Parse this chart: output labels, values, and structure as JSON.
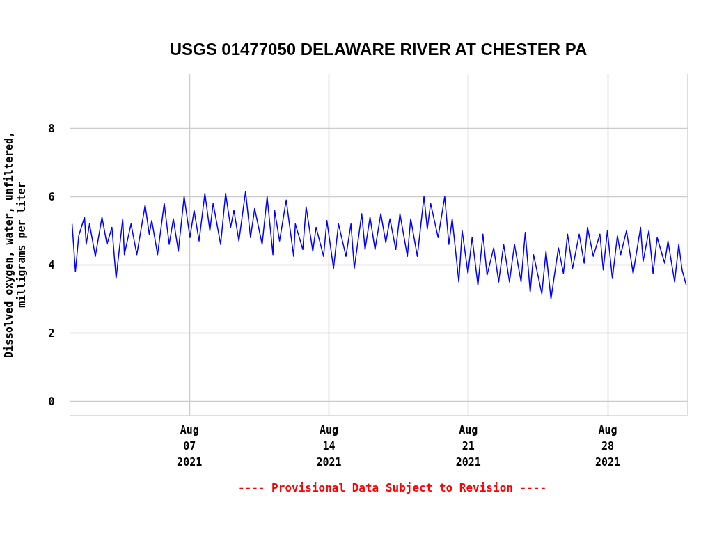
{
  "chart_data": {
    "type": "line",
    "title": "USGS 01477050 DELAWARE RIVER AT CHESTER PA",
    "ylabel": "Dissolved oxygen, water, unfiltered,\nmilligrams per liter",
    "annotations": [
      "---- Provisional Data Subject to Revision ----"
    ],
    "x": [
      "2021-08-01T03:00",
      "2021-08-01T07:00",
      "2021-08-01T11:00",
      "2021-08-01T18:00",
      "2021-08-01T20:00",
      "2021-08-02T00:00",
      "2021-08-02T07:00",
      "2021-08-02T15:00",
      "2021-08-02T21:00",
      "2021-08-03T03:00",
      "2021-08-03T08:00",
      "2021-08-03T16:00",
      "2021-08-03T18:00",
      "2021-08-04T02:00",
      "2021-08-04T09:00",
      "2021-08-04T19:00",
      "2021-08-05T00:00",
      "2021-08-05T03:00",
      "2021-08-05T10:00",
      "2021-08-05T18:00",
      "2021-08-06T00:00",
      "2021-08-06T05:00",
      "2021-08-06T11:00",
      "2021-08-06T18:00",
      "2021-08-07T01:00",
      "2021-08-07T06:00",
      "2021-08-07T12:00",
      "2021-08-07T19:00",
      "2021-08-08T01:00",
      "2021-08-08T05:00",
      "2021-08-08T14:00",
      "2021-08-08T20:00",
      "2021-08-09T02:00",
      "2021-08-09T06:00",
      "2021-08-09T12:00",
      "2021-08-09T20:00",
      "2021-08-10T02:00",
      "2021-08-10T07:00",
      "2021-08-10T16:00",
      "2021-08-10T22:00",
      "2021-08-11T05:00",
      "2021-08-11T07:00",
      "2021-08-11T13:00",
      "2021-08-11T21:00",
      "2021-08-12T06:00",
      "2021-08-12T08:00",
      "2021-08-12T17:00",
      "2021-08-12T21:00",
      "2021-08-13T05:00",
      "2021-08-13T09:00",
      "2021-08-13T18:00",
      "2021-08-13T22:00",
      "2021-08-14T06:00",
      "2021-08-14T12:00",
      "2021-08-14T21:00",
      "2021-08-15T03:00",
      "2021-08-15T07:00",
      "2021-08-15T16:00",
      "2021-08-15T20:00",
      "2021-08-16T02:00",
      "2021-08-16T08:00",
      "2021-08-16T15:00",
      "2021-08-16T21:00",
      "2021-08-17T02:00",
      "2021-08-17T09:00",
      "2021-08-17T14:00",
      "2021-08-17T23:00",
      "2021-08-18T03:00",
      "2021-08-18T11:00",
      "2021-08-18T19:00",
      "2021-08-18T23:00",
      "2021-08-19T03:00",
      "2021-08-19T12:00",
      "2021-08-19T20:00",
      "2021-08-20T01:00",
      "2021-08-20T05:00",
      "2021-08-20T13:00",
      "2021-08-20T17:00",
      "2021-08-21T00:00",
      "2021-08-21T05:00",
      "2021-08-21T12:00",
      "2021-08-21T18:00",
      "2021-08-21T23:00",
      "2021-08-22T07:00",
      "2021-08-22T13:00",
      "2021-08-22T19:00",
      "2021-08-23T02:00",
      "2021-08-23T08:00",
      "2021-08-23T16:00",
      "2021-08-23T21:00",
      "2021-08-24T03:00",
      "2021-08-24T07:00",
      "2021-08-24T17:00",
      "2021-08-24T22:00",
      "2021-08-25T04:00",
      "2021-08-25T13:00",
      "2021-08-25T19:00",
      "2021-08-26T00:00",
      "2021-08-26T06:00",
      "2021-08-26T14:00",
      "2021-08-26T20:00",
      "2021-08-27T00:00",
      "2021-08-27T07:00",
      "2021-08-27T15:00",
      "2021-08-27T19:00",
      "2021-08-28T00:00",
      "2021-08-28T06:00",
      "2021-08-28T12:00",
      "2021-08-28T16:00",
      "2021-08-28T23:00",
      "2021-08-29T07:00",
      "2021-08-29T16:00",
      "2021-08-29T19:00",
      "2021-08-30T02:00",
      "2021-08-30T07:00",
      "2021-08-30T12:00",
      "2021-08-30T21:00",
      "2021-08-31T01:00",
      "2021-08-31T09:00",
      "2021-08-31T14:00",
      "2021-08-31T18:00",
      "2021-08-31T23:00"
    ],
    "series": [
      {
        "color": "#0000ff",
        "values": [
          5.2,
          3.8,
          4.85,
          5.4,
          4.6,
          5.2,
          4.25,
          5.4,
          4.6,
          5.1,
          3.6,
          5.35,
          4.3,
          5.2,
          4.3,
          5.75,
          4.9,
          5.3,
          4.3,
          5.8,
          4.6,
          5.35,
          4.4,
          6.0,
          4.8,
          5.6,
          4.7,
          6.1,
          5.0,
          5.8,
          4.6,
          6.1,
          5.1,
          5.6,
          4.7,
          6.15,
          4.8,
          5.65,
          4.6,
          6.0,
          4.3,
          5.6,
          4.7,
          5.9,
          4.25,
          5.2,
          4.45,
          5.7,
          4.4,
          5.1,
          4.25,
          5.3,
          3.9,
          5.2,
          4.25,
          5.2,
          3.9,
          5.5,
          4.45,
          5.4,
          4.45,
          5.5,
          4.65,
          5.35,
          4.45,
          5.5,
          4.25,
          5.35,
          4.25,
          6.0,
          5.05,
          5.8,
          4.8,
          6.0,
          4.6,
          5.35,
          3.5,
          5.0,
          3.75,
          4.8,
          3.4,
          4.9,
          3.7,
          4.5,
          3.5,
          4.6,
          3.5,
          4.6,
          3.5,
          4.95,
          3.2,
          4.3,
          3.15,
          4.4,
          3.0,
          4.5,
          3.75,
          4.9,
          3.9,
          4.9,
          4.05,
          5.1,
          4.25,
          4.9,
          3.85,
          5.0,
          3.6,
          4.85,
          4.3,
          5.0,
          3.75,
          5.1,
          4.1,
          5.0,
          3.75,
          4.8,
          4.05,
          4.7,
          3.5,
          4.6,
          3.85,
          3.4
        ]
      }
    ],
    "xlim": [
      "2021-08-01",
      "2021-09-01"
    ],
    "xticks": [
      {
        "value": "2021-08-07",
        "label": "Aug\n07\n2021"
      },
      {
        "value": "2021-08-14",
        "label": "Aug\n14\n2021"
      },
      {
        "value": "2021-08-21",
        "label": "Aug\n21\n2021"
      },
      {
        "value": "2021-08-28",
        "label": "Aug\n28\n2021"
      }
    ],
    "ylim": [
      -0.4,
      9.6
    ],
    "yticks": [
      0,
      2,
      4,
      6,
      8
    ],
    "grid": true,
    "marker": "none",
    "line_style": "solid"
  }
}
